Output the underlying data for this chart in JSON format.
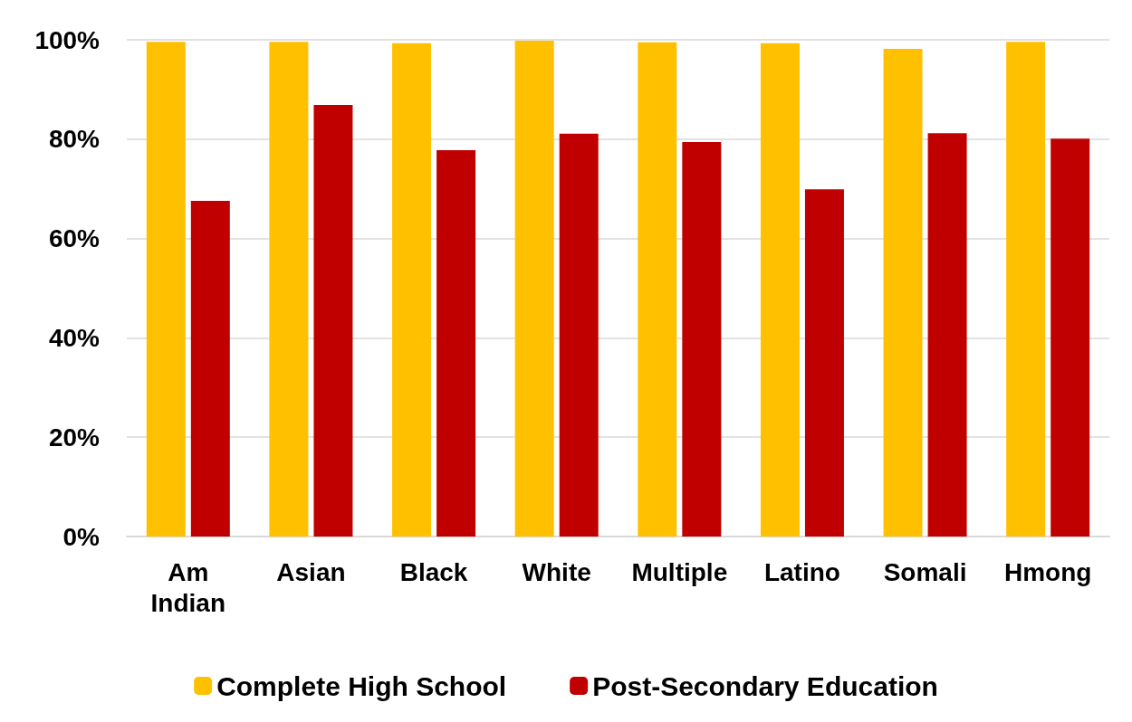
{
  "chart_data": {
    "type": "bar",
    "categories": [
      "Am\nIndian",
      "Asian",
      "Black",
      "White",
      "Multiple",
      "Latino",
      "Somali",
      "Hmong"
    ],
    "series": [
      {
        "name": "Complete High School",
        "color": "#ffc000",
        "values": [
          99.6,
          99.6,
          99.3,
          99.8,
          99.5,
          99.3,
          98.2,
          99.6
        ]
      },
      {
        "name": "Post-Secondary Education",
        "color": "#c00000",
        "values": [
          67.6,
          86.9,
          77.8,
          81.1,
          79.4,
          69.9,
          81.2,
          80.1
        ]
      }
    ],
    "ylim": [
      0,
      100
    ],
    "yticks": [
      {
        "value": 0,
        "label": "0%"
      },
      {
        "value": 20,
        "label": "20%"
      },
      {
        "value": 40,
        "label": "40%"
      },
      {
        "value": 60,
        "label": "60%"
      },
      {
        "value": 80,
        "label": "80%"
      },
      {
        "value": 100,
        "label": "100%"
      }
    ],
    "grid": "y",
    "legend": "bottom"
  }
}
